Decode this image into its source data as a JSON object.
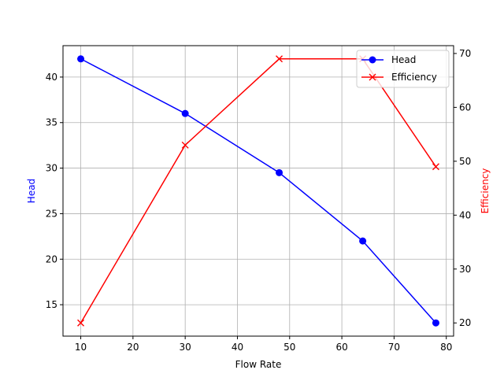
{
  "chart_data": {
    "type": "line",
    "title": "",
    "xlabel": "Flow Rate",
    "ylabel": "Head",
    "y2label": "Efficiency",
    "x": [
      10,
      30,
      48,
      64,
      78
    ],
    "xlim": [
      6.6,
      81.4
    ],
    "ylim": [
      11.55,
      43.45
    ],
    "y2lim": [
      17.55,
      71.45
    ],
    "xticks": [
      10,
      20,
      30,
      40,
      50,
      60,
      70,
      80
    ],
    "yticks": [
      15,
      20,
      25,
      30,
      35,
      40
    ],
    "y2ticks": [
      20,
      30,
      40,
      50,
      60,
      70
    ],
    "grid": true,
    "legend_position": "upper right",
    "series": [
      {
        "name": "Head",
        "axis": "left",
        "color": "#0000ff",
        "marker": "o",
        "values": [
          42,
          36,
          29.5,
          22,
          13
        ]
      },
      {
        "name": "Efficiency",
        "axis": "right",
        "color": "#ff0000",
        "marker": "x",
        "values": [
          20,
          53,
          69,
          69,
          49
        ]
      }
    ]
  }
}
